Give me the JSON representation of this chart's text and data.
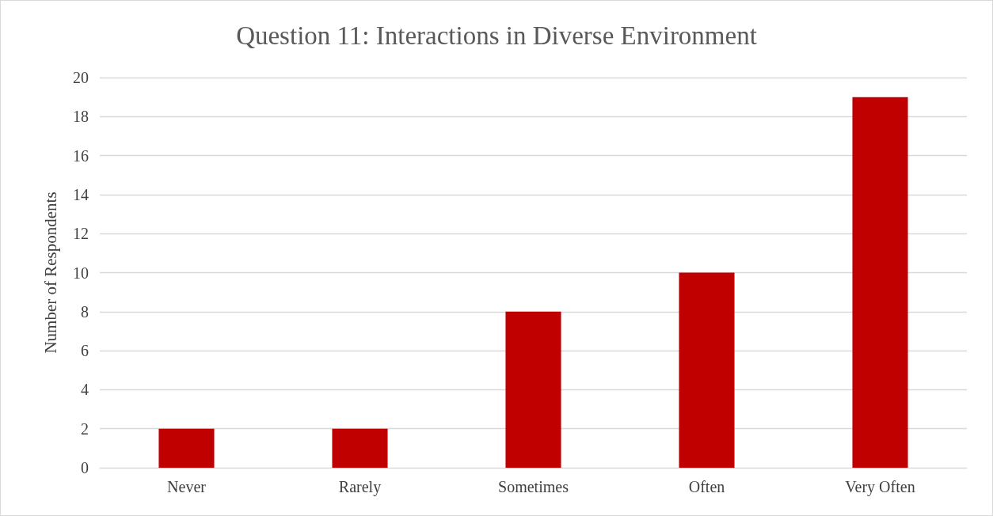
{
  "chart_data": {
    "type": "bar",
    "title": "Question 11: Interactions in Diverse Environment",
    "ylabel": "Number of Respondents",
    "categories": [
      "Never",
      "Rarely",
      "Sometimes",
      "Often",
      "Very Often"
    ],
    "values": [
      2,
      2,
      8,
      10,
      19
    ],
    "color": "#c00000",
    "ylim": [
      0,
      20
    ],
    "yticks": [
      0,
      2,
      4,
      6,
      8,
      10,
      12,
      14,
      16,
      18,
      20
    ],
    "grid": "y"
  }
}
